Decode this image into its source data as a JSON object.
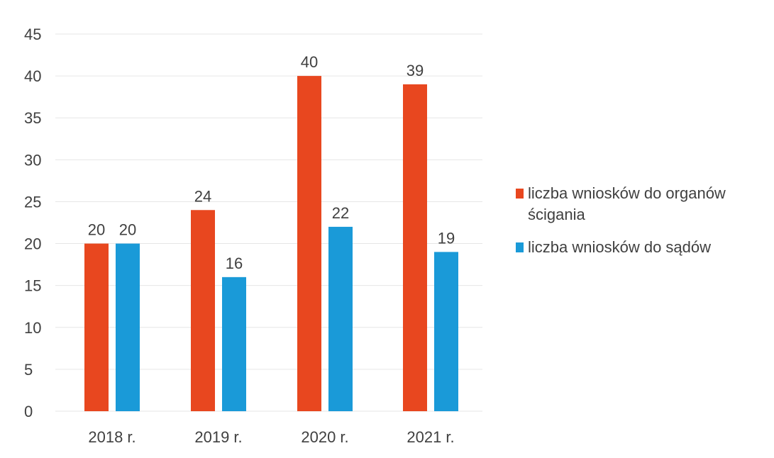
{
  "chart_data": {
    "type": "bar",
    "categories": [
      "2018 r.",
      "2019 r.",
      "2020 r.",
      "2021 r."
    ],
    "series": [
      {
        "name": "liczba wniosków do organów ścigania",
        "color": "#e8471f",
        "values": [
          20,
          24,
          40,
          39
        ]
      },
      {
        "name": "liczba wniosków do sądów",
        "color": "#1a9ad8",
        "values": [
          20,
          16,
          22,
          19
        ]
      }
    ],
    "ylim": [
      0,
      45
    ],
    "yticks": [
      0,
      5,
      10,
      15,
      20,
      25,
      30,
      35,
      40,
      45
    ],
    "grid": true,
    "legend_position": "right",
    "data_labels": true
  }
}
